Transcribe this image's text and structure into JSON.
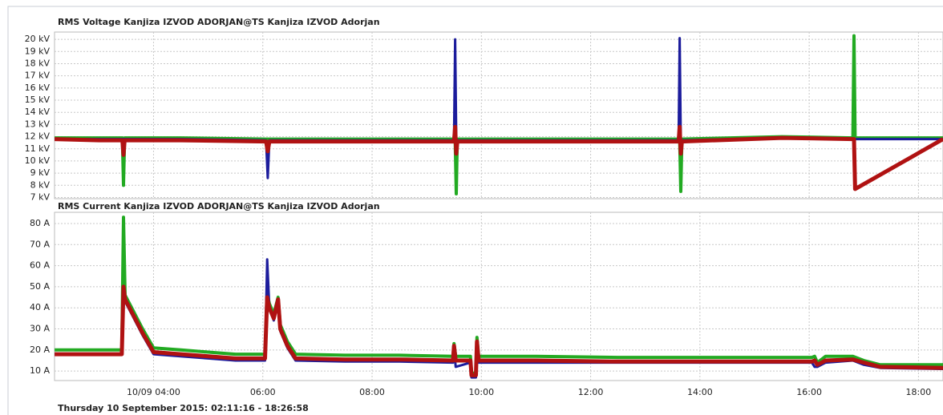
{
  "chart_data": [
    {
      "type": "line",
      "title": "RMS Voltage Kanjiza IZVOD ADORJAN@TS Kanjiza IZVOD Adorjan",
      "x": [
        2.19,
        3.0,
        3.43,
        3.45,
        3.47,
        4.5,
        6.06,
        6.09,
        6.12,
        8.0,
        9.5,
        9.52,
        9.54,
        9.56,
        11.0,
        13.61,
        13.63,
        13.65,
        13.67,
        15.5,
        16.8,
        16.82,
        16.84,
        18.45
      ],
      "series": [
        {
          "color": "#22aa22",
          "values": [
            11.9,
            11.9,
            11.9,
            8.0,
            11.9,
            11.9,
            11.8,
            11.8,
            11.8,
            11.8,
            11.8,
            11.8,
            7.3,
            11.8,
            11.8,
            11.8,
            11.8,
            7.5,
            11.8,
            12.0,
            11.9,
            20.3,
            11.9,
            11.9
          ]
        },
        {
          "color": "#1c1c9c",
          "values": [
            11.8,
            11.8,
            11.8,
            11.8,
            11.8,
            11.8,
            11.7,
            8.6,
            11.7,
            11.7,
            11.7,
            20.0,
            11.7,
            11.7,
            11.7,
            11.7,
            20.1,
            11.7,
            11.7,
            11.9,
            11.8,
            11.8,
            11.8,
            11.8
          ]
        },
        {
          "color": "#b01212",
          "values": [
            11.8,
            11.7,
            11.7,
            10.5,
            11.7,
            11.7,
            11.6,
            10.8,
            11.6,
            11.6,
            11.6,
            12.8,
            10.6,
            11.6,
            11.6,
            11.6,
            12.8,
            10.6,
            11.6,
            11.9,
            11.8,
            11.8,
            7.7,
            11.8
          ]
        }
      ],
      "xlim": [
        2.188,
        18.449
      ],
      "ylim": [
        6.9,
        20.6
      ],
      "yticks": [
        {
          "value": 7,
          "label": "7 kV"
        },
        {
          "value": 8,
          "label": "8 kV"
        },
        {
          "value": 9,
          "label": "9 kV"
        },
        {
          "value": 10,
          "label": "10 kV"
        },
        {
          "value": 11,
          "label": "11 kV"
        },
        {
          "value": 12,
          "label": "12 kV"
        },
        {
          "value": 13,
          "label": "13 kV"
        },
        {
          "value": 14,
          "label": "14 kV"
        },
        {
          "value": 15,
          "label": "15 kV"
        },
        {
          "value": 16,
          "label": "16 kV"
        },
        {
          "value": 17,
          "label": "17 kV"
        },
        {
          "value": 18,
          "label": "18 kV"
        },
        {
          "value": 19,
          "label": "19 kV"
        },
        {
          "value": 20,
          "label": "20 kV"
        }
      ],
      "grid": true
    },
    {
      "type": "line",
      "title": "RMS Current Kanjiza IZVOD ADORJAN@TS Kanjiza IZVOD Adorjan",
      "x": [
        2.19,
        2.8,
        3.42,
        3.45,
        3.48,
        3.6,
        3.8,
        4.0,
        4.5,
        5.0,
        5.5,
        6.04,
        6.08,
        6.12,
        6.2,
        6.28,
        6.32,
        6.45,
        6.6,
        7.5,
        8.5,
        9.48,
        9.5,
        9.53,
        9.8,
        9.82,
        9.9,
        9.92,
        9.95,
        11.0,
        12.5,
        14.0,
        16.05,
        16.1,
        16.15,
        16.3,
        16.8,
        17.0,
        17.3,
        18.45
      ],
      "series": [
        {
          "color": "#22aa22",
          "values": [
            20,
            20,
            20,
            83,
            46,
            40,
            30,
            21,
            20,
            19,
            18,
            18,
            47,
            42,
            37,
            45,
            32,
            24,
            18,
            17.5,
            17.5,
            17,
            23,
            17,
            17,
            9,
            9,
            26,
            17,
            17,
            16.5,
            16.5,
            16.5,
            17,
            14,
            17,
            17,
            15,
            13,
            13
          ]
        },
        {
          "color": "#1c1c9c",
          "values": [
            18,
            18,
            18,
            48,
            43,
            37,
            27,
            18,
            17,
            16,
            15,
            15,
            63,
            40,
            34,
            43,
            29,
            21,
            15,
            14.5,
            14.5,
            14,
            21,
            12,
            14,
            7,
            7,
            23,
            14,
            14,
            14,
            14,
            14,
            12,
            12,
            14,
            15,
            13,
            11.5,
            11
          ]
        },
        {
          "color": "#b01212",
          "values": [
            18,
            18,
            18,
            50,
            44,
            38,
            28,
            19,
            18,
            17,
            16,
            16,
            45,
            40,
            35,
            44,
            30,
            22,
            16,
            15.5,
            15.5,
            15,
            22,
            15,
            15,
            8,
            8,
            24,
            15,
            15,
            14.5,
            14.5,
            14.5,
            15,
            13,
            15,
            15.5,
            14,
            12,
            11.5
          ]
        }
      ],
      "xlim": [
        2.188,
        18.449
      ],
      "xticks": [
        {
          "value": 4,
          "label": "10/09 04:00"
        },
        {
          "value": 6,
          "label": "06:00"
        },
        {
          "value": 8,
          "label": "08:00"
        },
        {
          "value": 10,
          "label": "10:00"
        },
        {
          "value": 12,
          "label": "12:00"
        },
        {
          "value": 14,
          "label": "14:00"
        },
        {
          "value": 16,
          "label": "16:00"
        },
        {
          "value": 18,
          "label": "18:00"
        }
      ],
      "ylim": [
        5.5,
        85.3
      ],
      "yticks": [
        {
          "value": 10,
          "label": "10 A"
        },
        {
          "value": 20,
          "label": "20 A"
        },
        {
          "value": 30,
          "label": "30 A"
        },
        {
          "value": 40,
          "label": "40 A"
        },
        {
          "value": 50,
          "label": "50 A"
        },
        {
          "value": 60,
          "label": "60 A"
        },
        {
          "value": 70,
          "label": "70 A"
        },
        {
          "value": 80,
          "label": "80 A"
        }
      ],
      "grid": true
    }
  ],
  "footer": "Thursday 10 September 2015: 02:11:16 - 18:26:58"
}
